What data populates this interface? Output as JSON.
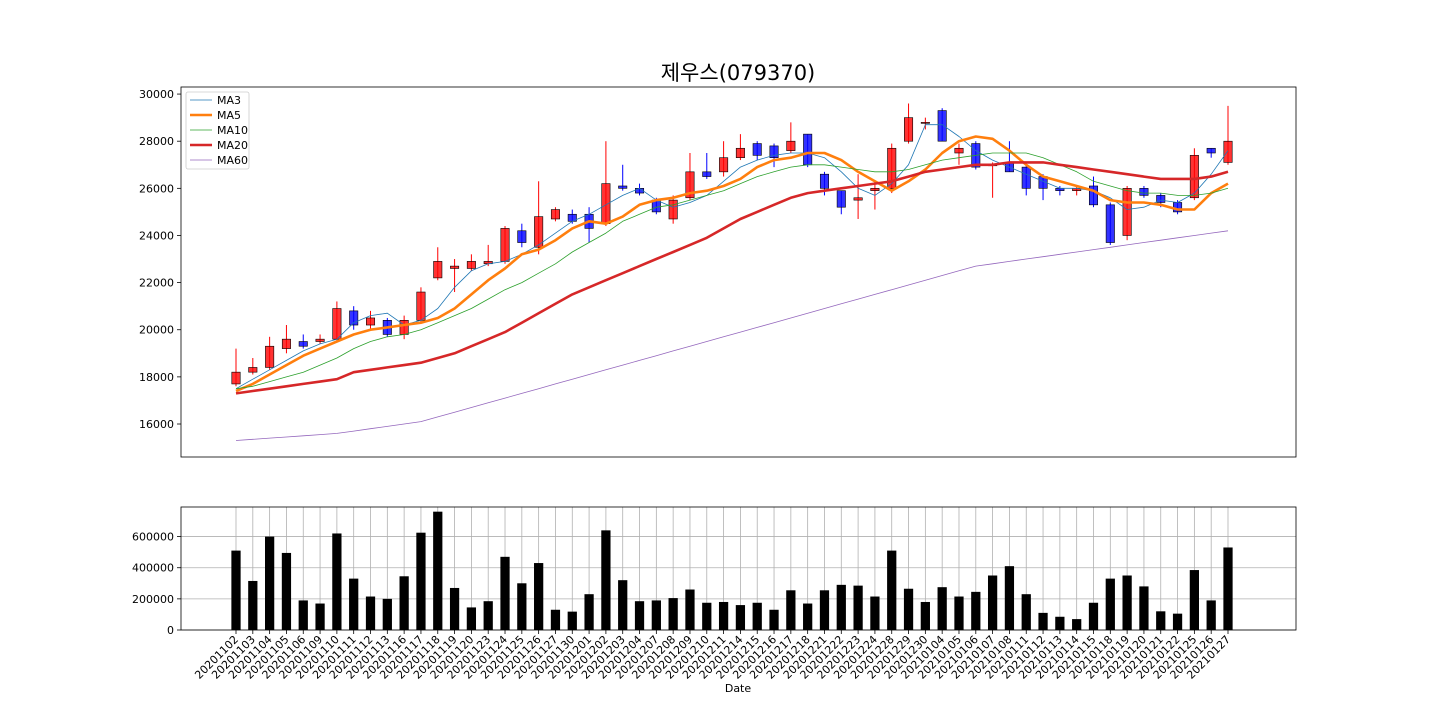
{
  "chart_data": {
    "title": "제우스(079370)",
    "price_panel": {
      "type": "candlestick",
      "ylim": [
        14600,
        30300
      ],
      "yticks": [
        16000,
        18000,
        20000,
        22000,
        24000,
        26000,
        28000,
        30000
      ],
      "legend": {
        "placement": "top-left",
        "entries": [
          {
            "name": "MA3",
            "color": "#1f77b4"
          },
          {
            "name": "MA5",
            "color": "#ff7f0e"
          },
          {
            "name": "MA10",
            "color": "#2ca02c"
          },
          {
            "name": "MA20",
            "color": "#d62728"
          },
          {
            "name": "MA60",
            "color": "#9467bd"
          }
        ]
      },
      "up_color": "#ff0000",
      "down_color": "#0000ff"
    },
    "volume_panel": {
      "type": "bar",
      "ylim": [
        0,
        790000
      ],
      "yticks": [
        0,
        200000,
        400000,
        600000
      ],
      "bar_color": "#000000",
      "grid": true,
      "xlabel": "Date"
    },
    "dates": [
      "20201102",
      "20201103",
      "20201104",
      "20201105",
      "20201106",
      "20201109",
      "20201110",
      "20201111",
      "20201112",
      "20201113",
      "20201116",
      "20201117",
      "20201118",
      "20201119",
      "20201120",
      "20201123",
      "20201124",
      "20201125",
      "20201126",
      "20201127",
      "20201130",
      "20201201",
      "20201202",
      "20201203",
      "20201204",
      "20201207",
      "20201208",
      "20201209",
      "20201210",
      "20201211",
      "20201214",
      "20201215",
      "20201216",
      "20201217",
      "20201218",
      "20201221",
      "20201222",
      "20201223",
      "20201224",
      "20201228",
      "20201229",
      "20201230",
      "20210104",
      "20210105",
      "20210106",
      "20210107",
      "20210108",
      "20210111",
      "20210112",
      "20210113",
      "20210114",
      "20210115",
      "20210118",
      "20210119",
      "20210120",
      "20210121",
      "20210122",
      "20210125",
      "20210126",
      "20210127"
    ],
    "ohlc": [
      [
        17700,
        19200,
        17600,
        18200
      ],
      [
        18200,
        18800,
        18100,
        18400
      ],
      [
        18400,
        19700,
        18300,
        19300
      ],
      [
        19200,
        20200,
        19000,
        19600
      ],
      [
        19500,
        19800,
        19200,
        19300
      ],
      [
        19500,
        19800,
        19400,
        19600
      ],
      [
        19600,
        21200,
        19500,
        20900
      ],
      [
        20800,
        21000,
        20000,
        20200
      ],
      [
        20200,
        20800,
        20000,
        20500
      ],
      [
        20400,
        20500,
        19700,
        19800
      ],
      [
        19800,
        20600,
        19600,
        20400
      ],
      [
        20400,
        21800,
        20300,
        21600
      ],
      [
        22200,
        23500,
        22100,
        22900
      ],
      [
        22600,
        23000,
        21600,
        22700
      ],
      [
        22600,
        23200,
        22500,
        22900
      ],
      [
        22800,
        23600,
        22700,
        22900
      ],
      [
        22900,
        24400,
        22800,
        24300
      ],
      [
        24200,
        24500,
        23500,
        23700
      ],
      [
        23500,
        26300,
        23200,
        24800
      ],
      [
        24700,
        25200,
        24600,
        25100
      ],
      [
        24900,
        25100,
        24500,
        24600
      ],
      [
        24900,
        25200,
        23700,
        24300
      ],
      [
        24500,
        28000,
        24400,
        26200
      ],
      [
        26100,
        27000,
        25900,
        26000
      ],
      [
        26000,
        26200,
        25700,
        25800
      ],
      [
        25500,
        25600,
        24900,
        25000
      ],
      [
        24700,
        25700,
        24500,
        25500
      ],
      [
        25600,
        27500,
        25500,
        26700
      ],
      [
        26700,
        27500,
        26400,
        26500
      ],
      [
        26700,
        28000,
        26500,
        27300
      ],
      [
        27300,
        28300,
        27200,
        27700
      ],
      [
        27900,
        28000,
        27200,
        27400
      ],
      [
        27800,
        27900,
        26900,
        27300
      ],
      [
        27600,
        28800,
        27500,
        28000
      ],
      [
        28300,
        28300,
        26900,
        27000
      ],
      [
        26600,
        26700,
        25700,
        26000
      ],
      [
        25900,
        25900,
        24900,
        25200
      ],
      [
        25500,
        26600,
        24700,
        25600
      ],
      [
        25900,
        26300,
        25100,
        26000
      ],
      [
        26000,
        27900,
        25800,
        27700
      ],
      [
        28000,
        29600,
        27900,
        29000
      ],
      [
        28800,
        29000,
        28500,
        28800
      ],
      [
        29300,
        29400,
        28000,
        28000
      ],
      [
        27500,
        27900,
        27000,
        27700
      ],
      [
        27900,
        28000,
        26800,
        26900
      ],
      [
        27000,
        27100,
        25600,
        27000
      ],
      [
        27100,
        28000,
        26700,
        26700
      ],
      [
        26900,
        27000,
        25700,
        26000
      ],
      [
        26500,
        26600,
        25500,
        26000
      ],
      [
        26000,
        26100,
        25700,
        25900
      ],
      [
        25900,
        26100,
        25700,
        26000
      ],
      [
        26100,
        26500,
        25200,
        25300
      ],
      [
        25300,
        25400,
        23600,
        23700
      ],
      [
        24000,
        26100,
        23800,
        26000
      ],
      [
        26000,
        26100,
        25600,
        25700
      ],
      [
        25700,
        25800,
        25200,
        25400
      ],
      [
        25400,
        25500,
        24900,
        25000
      ],
      [
        25600,
        27700,
        25500,
        27400
      ],
      [
        27700,
        27700,
        27300,
        27500
      ],
      [
        27100,
        29500,
        27000,
        28000
      ]
    ],
    "ma": {
      "MA3": [
        17500,
        17900,
        18300,
        18700,
        19100,
        19400,
        19600,
        20300,
        20600,
        20700,
        20200,
        20400,
        20900,
        21800,
        22500,
        22800,
        22900,
        23200,
        23600,
        24100,
        24600,
        24900,
        25300,
        25700,
        26000,
        25500,
        25200,
        25400,
        25700,
        26300,
        26900,
        27200,
        27400,
        27500,
        27500,
        27300,
        26700,
        26000,
        25700,
        26200,
        27000,
        28700,
        28700,
        28200,
        27600,
        27200,
        26900,
        26600,
        26300,
        26000,
        26000,
        25900,
        25600,
        25100,
        25200,
        25500,
        25400,
        25800,
        26600,
        27600
      ],
      "MA5": [
        17400,
        17700,
        18100,
        18500,
        18900,
        19200,
        19500,
        19800,
        20000,
        20100,
        20200,
        20300,
        20500,
        20900,
        21500,
        22100,
        22600,
        23200,
        23400,
        23800,
        24300,
        24600,
        24500,
        24800,
        25300,
        25500,
        25600,
        25800,
        25900,
        26100,
        26400,
        26900,
        27200,
        27300,
        27500,
        27500,
        27200,
        26700,
        26300,
        25900,
        26300,
        26800,
        27500,
        28000,
        28200,
        28100,
        27600,
        27000,
        26500,
        26300,
        26100,
        25900,
        25500,
        25400,
        25400,
        25300,
        25100,
        25100,
        25800,
        26200
      ],
      "MA10": [
        17500,
        17600,
        17800,
        18000,
        18200,
        18500,
        18800,
        19200,
        19500,
        19700,
        19800,
        20000,
        20300,
        20600,
        20900,
        21300,
        21700,
        22000,
        22400,
        22800,
        23300,
        23700,
        24100,
        24600,
        24900,
        25200,
        25300,
        25500,
        25700,
        25900,
        26200,
        26500,
        26700,
        26900,
        27000,
        27000,
        26900,
        26800,
        26700,
        26700,
        26800,
        27000,
        27200,
        27300,
        27400,
        27500,
        27500,
        27500,
        27300,
        27000,
        26700,
        26300,
        26100,
        25900,
        25800,
        25800,
        25700,
        25700,
        25800,
        26000
      ],
      "MA20": [
        17300,
        17400,
        17500,
        17600,
        17700,
        17800,
        17900,
        18200,
        18300,
        18400,
        18500,
        18600,
        18800,
        19000,
        19300,
        19600,
        19900,
        20300,
        20700,
        21100,
        21500,
        21800,
        22100,
        22400,
        22700,
        23000,
        23300,
        23600,
        23900,
        24300,
        24700,
        25000,
        25300,
        25600,
        25800,
        25900,
        26000,
        26100,
        26200,
        26300,
        26500,
        26700,
        26800,
        26900,
        27000,
        27000,
        27100,
        27100,
        27100,
        27000,
        26900,
        26800,
        26700,
        26600,
        26500,
        26400,
        26400,
        26400,
        26500,
        26700
      ],
      "MA60": [
        15300,
        15350,
        15400,
        15450,
        15500,
        15550,
        15600,
        15700,
        15800,
        15900,
        16000,
        16100,
        16300,
        16500,
        16700,
        16900,
        17100,
        17300,
        17500,
        17700,
        17900,
        18100,
        18300,
        18500,
        18700,
        18900,
        19100,
        19300,
        19500,
        19700,
        19900,
        20100,
        20300,
        20500,
        20700,
        20900,
        21100,
        21300,
        21500,
        21700,
        21900,
        22100,
        22300,
        22500,
        22700,
        22800,
        22900,
        23000,
        23100,
        23200,
        23300,
        23400,
        23500,
        23600,
        23700,
        23800,
        23900,
        24000,
        24100,
        24200
      ]
    },
    "volume": [
      510000,
      315000,
      600000,
      495000,
      190000,
      170000,
      620000,
      330000,
      215000,
      200000,
      345000,
      625000,
      760000,
      270000,
      145000,
      185000,
      470000,
      300000,
      430000,
      130000,
      118000,
      230000,
      640000,
      320000,
      185000,
      190000,
      205000,
      260000,
      175000,
      180000,
      160000,
      175000,
      130000,
      255000,
      170000,
      255000,
      290000,
      285000,
      215000,
      510000,
      265000,
      180000,
      275000,
      215000,
      245000,
      350000,
      410000,
      230000,
      110000,
      85000,
      70000,
      175000,
      330000,
      350000,
      280000,
      120000,
      105000,
      385000,
      190000,
      530000
    ]
  }
}
